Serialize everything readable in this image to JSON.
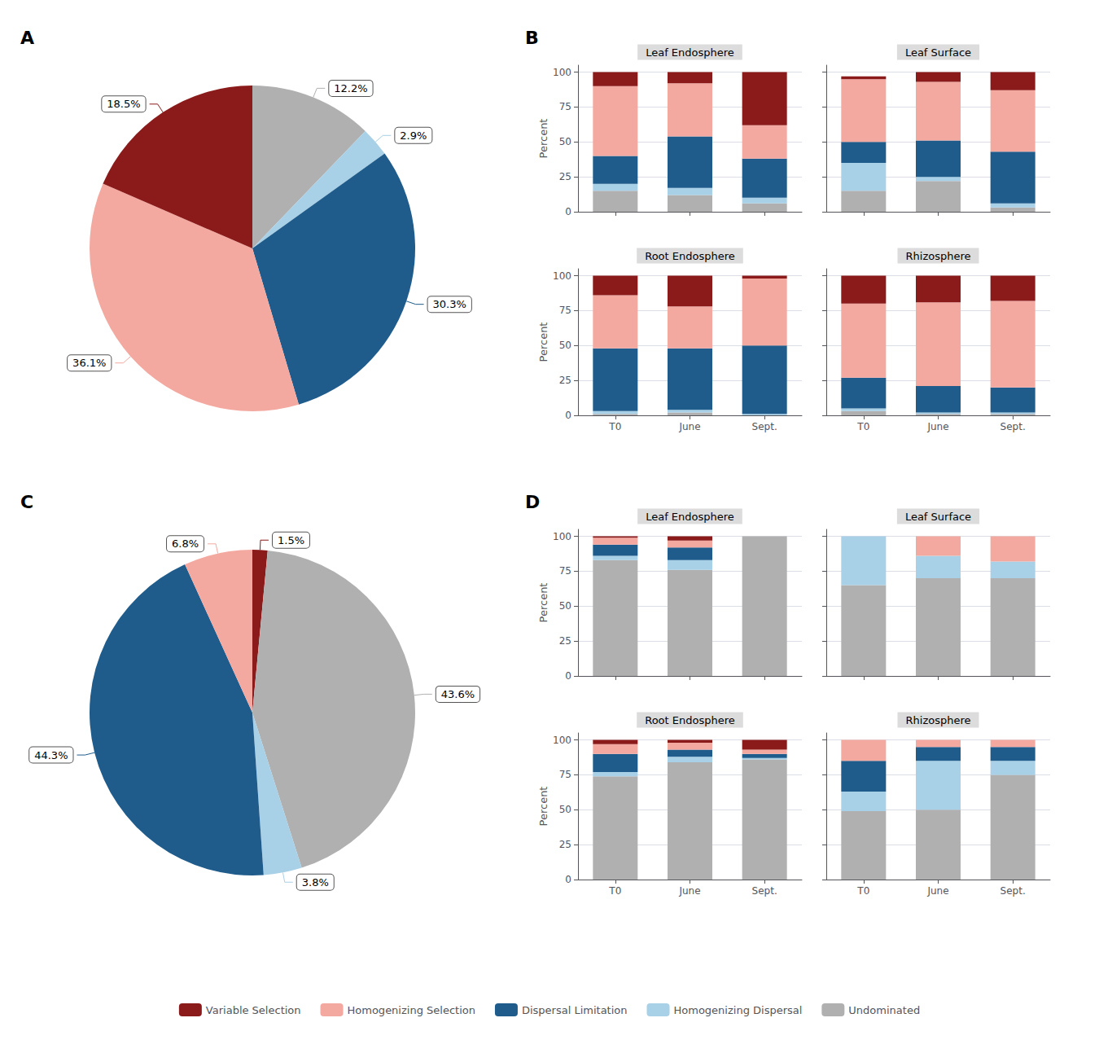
{
  "chart_data": [
    {
      "type": "pie",
      "annotations": [
        "A"
      ],
      "categories": [
        "Undominated",
        "Homogenizing Dispersal",
        "Dispersal Limitation",
        "Homogenizing Selection",
        "Variable Selection"
      ],
      "values": [
        12.2,
        2.9,
        30.3,
        36.1,
        18.5
      ],
      "value_labels": [
        "12.2%",
        "2.9%",
        "30.3%",
        "36.1%",
        "18.5%"
      ],
      "colors": [
        "#B0B0B0",
        "#A8D0E6",
        "#1F5C8B",
        "#F4A9A0",
        "#8B1A1A"
      ],
      "data_labels": true
    },
    {
      "type": "bar",
      "title": "Leaf Endosphere",
      "annotations": [
        "B"
      ],
      "categories": [
        "T0",
        "June",
        "Sept."
      ],
      "series": [
        {
          "name": "Undominated",
          "color": "#B0B0B0",
          "values": [
            15,
            12,
            6
          ]
        },
        {
          "name": "Homogenizing Dispersal",
          "color": "#A8D0E6",
          "values": [
            5,
            5,
            4
          ]
        },
        {
          "name": "Dispersal Limitation",
          "color": "#1F5C8B",
          "values": [
            20,
            37,
            28
          ]
        },
        {
          "name": "Homogenizing Selection",
          "color": "#F4A9A0",
          "values": [
            50,
            38,
            24
          ]
        },
        {
          "name": "Variable Selection",
          "color": "#8B1A1A",
          "values": [
            10,
            8,
            38
          ]
        }
      ],
      "stacked": true,
      "ylim": [
        0,
        105
      ],
      "yticks": [
        0,
        25,
        50,
        75,
        100
      ],
      "ylabel": "Percent",
      "grid": true,
      "legend": "bottom",
      "tick_labels": "y"
    },
    {
      "type": "bar",
      "title": "Leaf Surface",
      "categories": [
        "T0",
        "June",
        "Sept."
      ],
      "series": [
        {
          "name": "Undominated",
          "color": "#B0B0B0",
          "values": [
            15,
            22,
            3
          ]
        },
        {
          "name": "Homogenizing Dispersal",
          "color": "#A8D0E6",
          "values": [
            20,
            3,
            3
          ]
        },
        {
          "name": "Dispersal Limitation",
          "color": "#1F5C8B",
          "values": [
            15,
            26,
            37
          ]
        },
        {
          "name": "Homogenizing Selection",
          "color": "#F4A9A0",
          "values": [
            45,
            42,
            44
          ]
        },
        {
          "name": "Variable Selection",
          "color": "#8B1A1A",
          "values": [
            2,
            7,
            13
          ]
        }
      ],
      "stacked": true,
      "ylim": [
        0,
        105
      ],
      "yticks": [
        0,
        25,
        50,
        75,
        100
      ],
      "grid": true,
      "legend": "bottom",
      "tick_labels": false
    },
    {
      "type": "bar",
      "title": "Root Endosphere",
      "categories": [
        "T0",
        "June",
        "Sept."
      ],
      "series": [
        {
          "name": "Undominated",
          "color": "#B0B0B0",
          "values": [
            1,
            2,
            0
          ]
        },
        {
          "name": "Homogenizing Dispersal",
          "color": "#A8D0E6",
          "values": [
            2,
            2,
            1
          ]
        },
        {
          "name": "Dispersal Limitation",
          "color": "#1F5C8B",
          "values": [
            45,
            44,
            49
          ]
        },
        {
          "name": "Homogenizing Selection",
          "color": "#F4A9A0",
          "values": [
            38,
            30,
            48
          ]
        },
        {
          "name": "Variable Selection",
          "color": "#8B1A1A",
          "values": [
            14,
            22,
            2
          ]
        }
      ],
      "stacked": true,
      "ylim": [
        0,
        105
      ],
      "yticks": [
        0,
        25,
        50,
        75,
        100
      ],
      "ylabel": "Percent",
      "grid": true,
      "legend": "bottom"
    },
    {
      "type": "bar",
      "title": "Rhizosphere",
      "categories": [
        "T0",
        "June",
        "Sept."
      ],
      "series": [
        {
          "name": "Undominated",
          "color": "#B0B0B0",
          "values": [
            3,
            1,
            1
          ]
        },
        {
          "name": "Homogenizing Dispersal",
          "color": "#A8D0E6",
          "values": [
            2,
            1,
            1
          ]
        },
        {
          "name": "Dispersal Limitation",
          "color": "#1F5C8B",
          "values": [
            22,
            19,
            18
          ]
        },
        {
          "name": "Homogenizing Selection",
          "color": "#F4A9A0",
          "values": [
            53,
            60,
            62
          ]
        },
        {
          "name": "Variable Selection",
          "color": "#8B1A1A",
          "values": [
            20,
            19,
            18
          ]
        }
      ],
      "stacked": true,
      "ylim": [
        0,
        105
      ],
      "yticks": [
        0,
        25,
        50,
        75,
        100
      ],
      "grid": true,
      "legend": "bottom",
      "tick_labels": "x"
    },
    {
      "type": "pie",
      "annotations": [
        "C"
      ],
      "categories": [
        "Variable Selection",
        "Undominated",
        "Homogenizing Dispersal",
        "Dispersal Limitation",
        "Homogenizing Selection"
      ],
      "values": [
        1.5,
        43.6,
        3.8,
        44.3,
        6.8
      ],
      "value_labels": [
        "1.5%",
        "43.6%",
        "3.8%",
        "44.3%",
        "6.8%"
      ],
      "colors": [
        "#8B1A1A",
        "#B0B0B0",
        "#A8D0E6",
        "#1F5C8B",
        "#F4A9A0"
      ],
      "data_labels": true
    },
    {
      "type": "bar",
      "title": "Leaf Endosphere",
      "annotations": [
        "D"
      ],
      "categories": [
        "T0",
        "June",
        "Sept."
      ],
      "series": [
        {
          "name": "Undominated",
          "color": "#B0B0B0",
          "values": [
            83,
            76,
            100
          ]
        },
        {
          "name": "Homogenizing Dispersal",
          "color": "#A8D0E6",
          "values": [
            3,
            7,
            0
          ]
        },
        {
          "name": "Dispersal Limitation",
          "color": "#1F5C8B",
          "values": [
            8,
            9,
            0
          ]
        },
        {
          "name": "Homogenizing Selection",
          "color": "#F4A9A0",
          "values": [
            5,
            5,
            0
          ]
        },
        {
          "name": "Variable Selection",
          "color": "#8B1A1A",
          "values": [
            1,
            3,
            0
          ]
        }
      ],
      "stacked": true,
      "ylim": [
        0,
        105
      ],
      "yticks": [
        0,
        25,
        50,
        75,
        100
      ],
      "ylabel": "Percent",
      "grid": true,
      "legend": "bottom",
      "tick_labels": "y"
    },
    {
      "type": "bar",
      "title": "Leaf Surface",
      "categories": [
        "T0",
        "June",
        "Sept."
      ],
      "series": [
        {
          "name": "Undominated",
          "color": "#B0B0B0",
          "values": [
            65,
            70,
            70
          ]
        },
        {
          "name": "Homogenizing Dispersal",
          "color": "#A8D0E6",
          "values": [
            35,
            16,
            12
          ]
        },
        {
          "name": "Dispersal Limitation",
          "color": "#1F5C8B",
          "values": [
            0,
            0,
            0
          ]
        },
        {
          "name": "Homogenizing Selection",
          "color": "#F4A9A0",
          "values": [
            0,
            14,
            18
          ]
        },
        {
          "name": "Variable Selection",
          "color": "#8B1A1A",
          "values": [
            0,
            0,
            0
          ]
        }
      ],
      "stacked": true,
      "ylim": [
        0,
        105
      ],
      "yticks": [
        0,
        25,
        50,
        75,
        100
      ],
      "grid": true,
      "legend": "bottom",
      "tick_labels": false
    },
    {
      "type": "bar",
      "title": "Root Endosphere",
      "categories": [
        "T0",
        "June",
        "Sept."
      ],
      "series": [
        {
          "name": "Undominated",
          "color": "#B0B0B0",
          "values": [
            74,
            84,
            86
          ]
        },
        {
          "name": "Homogenizing Dispersal",
          "color": "#A8D0E6",
          "values": [
            3,
            4,
            1
          ]
        },
        {
          "name": "Dispersal Limitation",
          "color": "#1F5C8B",
          "values": [
            13,
            5,
            3
          ]
        },
        {
          "name": "Homogenizing Selection",
          "color": "#F4A9A0",
          "values": [
            7,
            5,
            3
          ]
        },
        {
          "name": "Variable Selection",
          "color": "#8B1A1A",
          "values": [
            3,
            2,
            7
          ]
        }
      ],
      "stacked": true,
      "ylim": [
        0,
        105
      ],
      "yticks": [
        0,
        25,
        50,
        75,
        100
      ],
      "ylabel": "Percent",
      "grid": true,
      "legend": "bottom"
    },
    {
      "type": "bar",
      "title": "Rhizosphere",
      "categories": [
        "T0",
        "June",
        "Sept."
      ],
      "series": [
        {
          "name": "Undominated",
          "color": "#B0B0B0",
          "values": [
            49,
            50,
            75
          ]
        },
        {
          "name": "Homogenizing Dispersal",
          "color": "#A8D0E6",
          "values": [
            14,
            35,
            10
          ]
        },
        {
          "name": "Dispersal Limitation",
          "color": "#1F5C8B",
          "values": [
            22,
            10,
            10
          ]
        },
        {
          "name": "Homogenizing Selection",
          "color": "#F4A9A0",
          "values": [
            15,
            5,
            5
          ]
        },
        {
          "name": "Variable Selection",
          "color": "#8B1A1A",
          "values": [
            0,
            0,
            0
          ]
        }
      ],
      "stacked": true,
      "ylim": [
        0,
        105
      ],
      "yticks": [
        0,
        25,
        50,
        75,
        100
      ],
      "grid": true,
      "legend": "bottom",
      "tick_labels": "x"
    }
  ]
}
